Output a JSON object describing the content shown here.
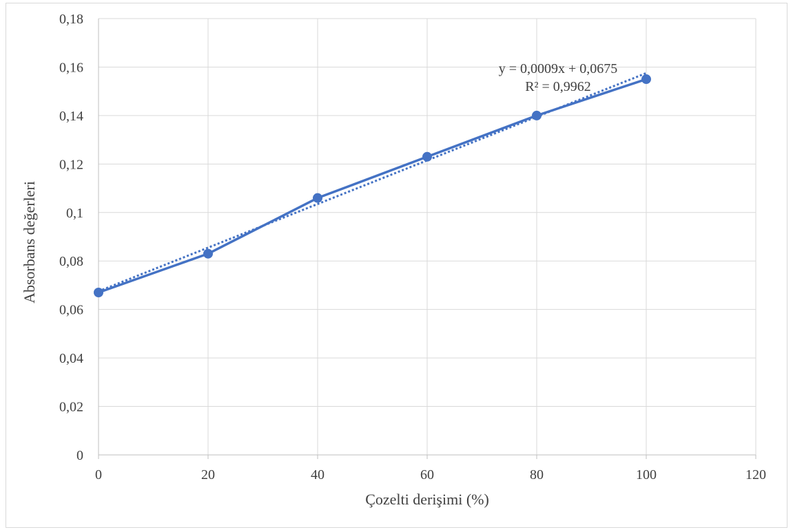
{
  "chart_data": {
    "type": "scatter",
    "xlabel": "Çozelti derişimi (%)",
    "ylabel": "Absorbans değerleri",
    "xlim": [
      0,
      120
    ],
    "ylim": [
      0,
      0.18
    ],
    "x_ticks": [
      0,
      20,
      40,
      60,
      80,
      100,
      120
    ],
    "y_ticks": [
      0,
      0.02,
      0.04,
      0.06,
      0.08,
      0.1,
      0.12,
      0.14,
      0.16,
      0.18
    ],
    "x_tick_labels": [
      "0",
      "20",
      "40",
      "60",
      "80",
      "100",
      "120"
    ],
    "y_tick_labels": [
      "0",
      "0,02",
      "0,04",
      "0,06",
      "0,08",
      "0,1",
      "0,12",
      "0,14",
      "0,16",
      "0,18"
    ],
    "grid": true,
    "series": [
      {
        "x": [
          0,
          20,
          40,
          60,
          80,
          100
        ],
        "y": [
          0.067,
          0.083,
          0.106,
          0.123,
          0.14,
          0.155
        ],
        "color": "#4472C4",
        "style": "line-with-markers"
      }
    ],
    "trendline": {
      "type": "linear",
      "slope": 0.0009,
      "intercept": 0.0675,
      "x_range": [
        0,
        100
      ],
      "equation_label": "y = 0,0009x + 0,0675",
      "r2_label": "R² = 0,9962",
      "color": "#4472C4",
      "style": "dotted"
    }
  }
}
